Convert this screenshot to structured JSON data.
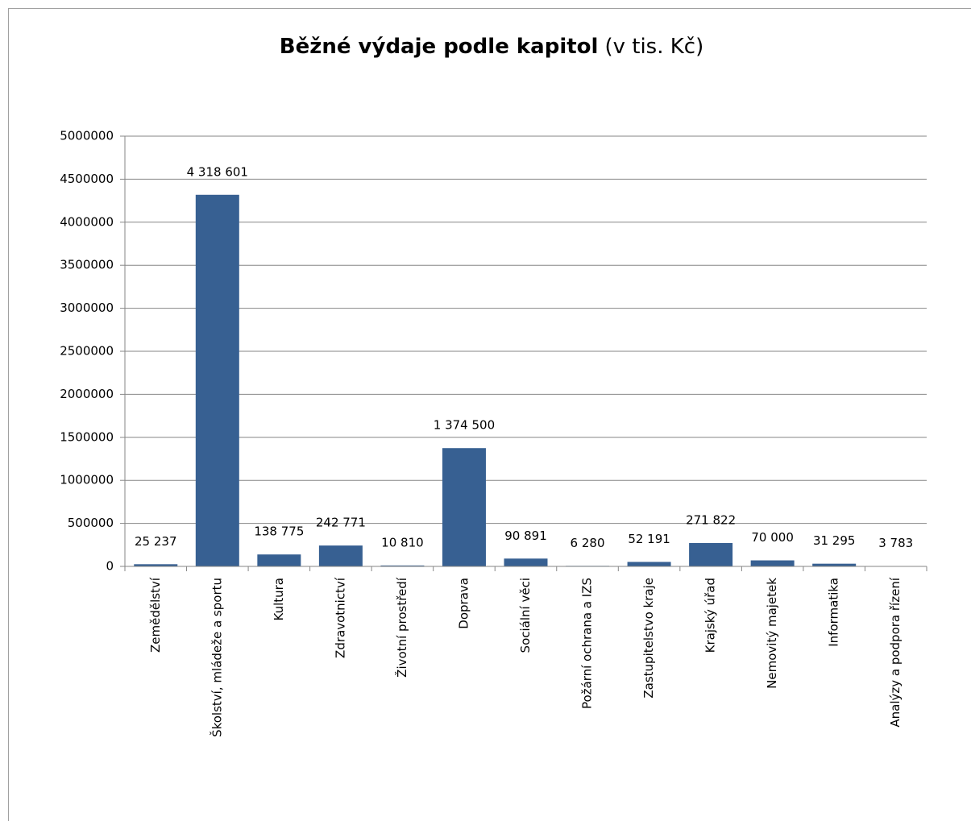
{
  "chart_data": {
    "type": "bar",
    "title": "Běžné výdaje podle kapitol",
    "title_unit": "(v tis. Kč)",
    "categories": [
      "Zemědělství",
      "Školství, mládeže a sportu",
      "Kultura",
      "Zdravotnictví",
      "Životní prostředí",
      "Doprava",
      "Sociální věci",
      "Požární ochrana a IZS",
      "Zastupitelstvo kraje",
      "Krajský úřad",
      "Nemovitý majetek",
      "Informatika",
      "Analýzy a podpora řízení"
    ],
    "values": [
      25237,
      4318601,
      138775,
      242771,
      10810,
      1374500,
      90891,
      6280,
      52191,
      271822,
      70000,
      31295,
      3783
    ],
    "value_labels": [
      "25 237",
      "4 318 601",
      "138 775",
      "242 771",
      "10 810",
      "1 374 500",
      "90 891",
      "6 280",
      "52 191",
      "271 822",
      "70 000",
      "31 295",
      "3 783"
    ],
    "color": "#376092",
    "ylim": [
      0,
      5000000
    ],
    "yticks": [
      0,
      500000,
      1000000,
      1500000,
      2000000,
      2500000,
      3000000,
      3500000,
      4000000,
      4500000,
      5000000
    ],
    "grid": true
  }
}
